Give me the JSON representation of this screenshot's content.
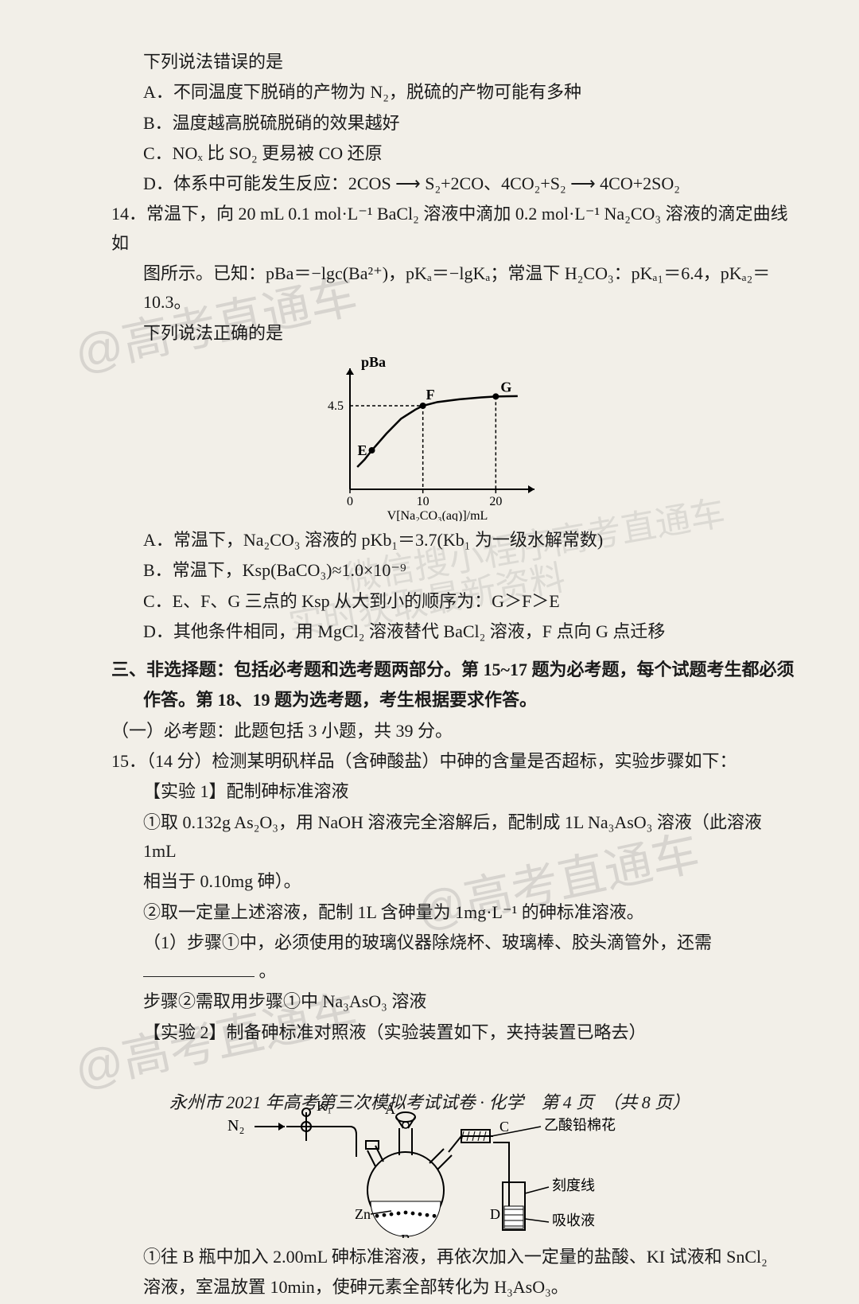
{
  "q13": {
    "stem_cont": "下列说法错误的是",
    "opts": {
      "A": "A．不同温度下脱硝的产物为 N₂，脱硫的产物可能有多种",
      "B": "B．温度越高脱硫脱硝的效果越好",
      "C": "C．NOₓ 比 SO₂ 更易被 CO 还原",
      "D": "D．体系中可能发生反应：2COS ⟶ S₂+2CO、4CO₂+S₂ ⟶ 4CO+2SO₂"
    }
  },
  "q14": {
    "num": "14．",
    "stem1": "常温下，向 20 mL 0.1 mol·L⁻¹ BaCl₂ 溶液中滴加 0.2 mol·L⁻¹ Na₂CO₃ 溶液的滴定曲线如",
    "stem2": "图所示。已知：pBa＝−lgc(Ba²⁺)，pKₐ＝−lgKₐ；常温下 H₂CO₃：pKₐ₁＝6.4，pKₐ₂＝10.3。",
    "stem3": "下列说法正确的是",
    "opts": {
      "A": "A．常温下，Na₂CO₃ 溶液的 pKb₁＝3.7(Kb₁ 为一级水解常数)",
      "B": "B．常温下，Ksp(BaCO₃)≈1.0×10⁻⁹",
      "C": "C．E、F、G 三点的 Ksp 从大到小的顺序为：G＞F＞E",
      "D": "D．其他条件相同，用 MgCl₂ 溶液替代 BaCl₂ 溶液，F 点向 G 点迁移"
    },
    "chart": {
      "type": "line",
      "y_axis_label": "pBa",
      "x_axis_label": "V[Na₂CO₃(aq)]/mL",
      "x_ticks": [
        "0",
        "10",
        "20"
      ],
      "y_ticks": [
        "4.5"
      ],
      "points": {
        "E": "E",
        "F": "F",
        "G": "G"
      },
      "curve_color": "#000000",
      "axis_color": "#000000",
      "dash_color": "#000000",
      "xlim": [
        0,
        24
      ],
      "ylim": [
        0,
        6
      ],
      "curve_pts": [
        [
          1,
          1.2
        ],
        [
          2,
          1.6
        ],
        [
          3,
          2.1
        ],
        [
          5,
          3.0
        ],
        [
          7,
          3.8
        ],
        [
          9,
          4.3
        ],
        [
          10,
          4.5
        ],
        [
          12,
          4.7
        ],
        [
          15,
          4.85
        ],
        [
          18,
          4.95
        ],
        [
          20,
          5.0
        ],
        [
          23,
          5.02
        ]
      ],
      "E_xy": [
        3,
        2.1
      ],
      "F_xy": [
        10,
        4.5
      ],
      "G_xy": [
        20,
        5.0
      ],
      "line_width": 2
    }
  },
  "section3": {
    "hdr1": "三、非选择题：包括必考题和选考题两部分。第 15~17 题为必考题，每个试题考生都必须",
    "hdr2": "作答。第 18、19 题为选考题，考生根据要求作答。",
    "sub1": "（一）必考题：此题包括 3 小题，共 39 分。"
  },
  "q15": {
    "num": "15．",
    "stem": "（14 分）检测某明矾样品（含砷酸盐）中砷的含量是否超标，实验步骤如下：",
    "exp1_title": "【实验 1】配制砷标准溶液",
    "exp1_s1": "①取 0.132g As₂O₃，用 NaOH 溶液完全溶解后，配制成 1L Na₃AsO₃ 溶液（此溶液 1mL",
    "exp1_s1b": "相当于 0.10mg 砷）。",
    "exp1_s2": "②取一定量上述溶液，配制 1L 含砷量为 1mg·L⁻¹ 的砷标准溶液。",
    "exp1_q1a": "（1）步骤①中，必须使用的玻璃仪器除烧杯、玻璃棒、胶头滴管外，还需",
    "exp1_q1b": "。",
    "exp1_q2": "步骤②需取用步骤①中 Na₃AsO₃ 溶液",
    "exp2_title": "【实验 2】制备砷标准对照液（实验装置如下，夹持装置已略去）",
    "exp2_s1a": "①往 B 瓶中加入 2.00mL 砷标准溶液，再依次加入一定量的盐酸、KI 试液和 SnCl₂",
    "exp2_s1b": "溶液，室温放置 10min，使砷元素全部转化为 H₃AsO₃。",
    "apparatus": {
      "labels": {
        "N2": "N₂",
        "K1": "K₁",
        "A": "A",
        "B": "B",
        "C": "C",
        "D": "D",
        "Zn": "Zn",
        "cotton": "乙酸铅棉花",
        "mark": "刻度线",
        "absorb": "吸收液"
      },
      "stroke_color": "#000000",
      "fill_liquid": "#ffffff",
      "line_width": 2
    }
  },
  "footer": "永州市 2021 年高考第三次模拟考试试卷 · 化学　第 4 页　（共 8 页）",
  "watermarks": {
    "wm1": "@高考直通车",
    "wm2": "@高考直通车",
    "wm3": "@高考直通车",
    "wm4": "微信搜小程序高考直通车",
    "wm5": "实时获取最新资料"
  },
  "colors": {
    "bg": "#f2efe8",
    "text": "#1a1a1a",
    "wm": "rgba(120,120,120,0.22)"
  }
}
